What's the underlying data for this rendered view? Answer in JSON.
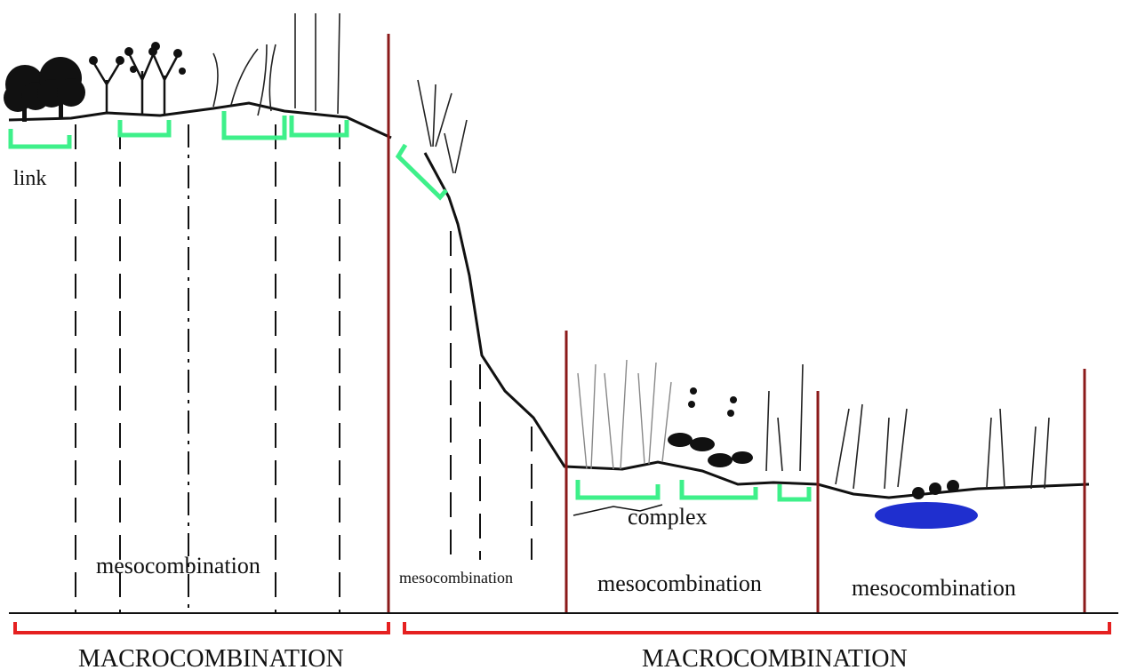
{
  "labels": {
    "link": "link",
    "complex": "complex",
    "mesocombinations": [
      "mesocombination",
      "mesocombination",
      "mesocombination",
      "mesocombination"
    ],
    "macrocombinations": [
      "MACROCOMBINATION",
      "MACROCOMBINATION"
    ]
  }
}
